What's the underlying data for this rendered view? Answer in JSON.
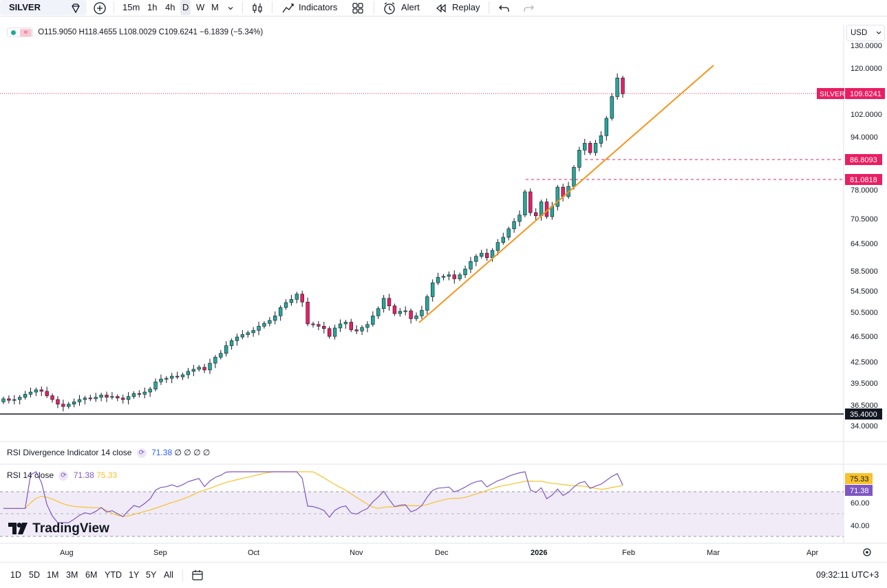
{
  "toolbar": {
    "symbol": "SILVER",
    "timeframes": [
      "15m",
      "1h",
      "4h",
      "D",
      "W",
      "M"
    ],
    "active_timeframe": "D",
    "indicators_label": "Indicators",
    "alert_label": "Alert",
    "replay_label": "Replay",
    "icons": [
      "diamond-icon",
      "add-symbol-icon",
      "chevron-down-icon",
      "candles-icon",
      "indicators-icon",
      "layout-icon",
      "alert-icon",
      "replay-icon",
      "undo-icon",
      "redo-icon"
    ]
  },
  "legend": {
    "open": "O115.9050",
    "high": "H118.4655",
    "low": "L108.0029",
    "close": "C109.6241",
    "change": "−6.1839 (−5.34%)"
  },
  "currency": "USD",
  "price_axis": {
    "ticks": [
      "130.0000",
      "120.0000",
      "102.0000",
      "94.0000",
      "78.0000",
      "70.5000",
      "64.5000",
      "58.5000",
      "54.5000",
      "50.5000",
      "46.5000",
      "42.5000",
      "39.5000",
      "36.5000",
      "34.0000"
    ],
    "last_price_symbol": "SILVER",
    "last_price": "109.6241",
    "level_1": "86.8093",
    "level_2": "81.0818",
    "level_3": "35.4000"
  },
  "indicators": {
    "divergence": {
      "label": "RSI Divergence Indicator 14 close",
      "value": "71.38",
      "extra": "∅ ∅ ∅ ∅"
    },
    "rsi": {
      "label": "RSI 14 close",
      "rsi_value": "71.38",
      "ma_value": "75.33"
    },
    "rsi_axis": [
      "60.00",
      "40.00"
    ]
  },
  "time_axis": [
    "Aug",
    "Sep",
    "Oct",
    "Nov",
    "Dec",
    "2026",
    "Feb",
    "Mar",
    "Apr"
  ],
  "brand": "TradingView",
  "bottombar": {
    "ranges": [
      "1D",
      "5D",
      "1M",
      "3M",
      "6M",
      "YTD",
      "1Y",
      "5Y",
      "All"
    ],
    "clock": "09:32:11 UTC+3"
  },
  "colors": {
    "up": "#26a69a",
    "down": "#e91e63",
    "trend": "#f7931a",
    "rsi": "#7e57c2",
    "rsi_ma": "#f7c22b"
  },
  "chart_data": {
    "type": "candlestick",
    "series_points": [
      [
        36.9,
        37.3
      ],
      [
        37.3,
        37.1
      ],
      [
        37.1,
        37.2
      ],
      [
        37.2,
        37.5
      ],
      [
        37.5,
        37.9
      ],
      [
        37.9,
        38.2
      ],
      [
        38.2,
        38.5
      ],
      [
        38.5,
        38.3
      ],
      [
        38.3,
        37.7
      ],
      [
        37.7,
        37.2
      ],
      [
        37.2,
        36.6
      ],
      [
        36.6,
        36.3
      ],
      [
        36.3,
        36.6
      ],
      [
        36.6,
        36.9
      ],
      [
        36.9,
        37.2
      ],
      [
        37.2,
        37.4
      ],
      [
        37.4,
        37.3
      ],
      [
        37.3,
        37.5
      ],
      [
        37.5,
        37.8
      ],
      [
        37.8,
        37.5
      ],
      [
        37.5,
        37.6
      ],
      [
        37.6,
        37.4
      ],
      [
        37.4,
        37.2
      ],
      [
        37.2,
        37.6
      ],
      [
        37.6,
        38.0
      ],
      [
        38.0,
        37.9
      ],
      [
        37.9,
        38.2
      ],
      [
        38.2,
        38.6
      ],
      [
        38.6,
        39.6
      ],
      [
        39.6,
        40.0
      ],
      [
        40.0,
        40.1
      ],
      [
        40.1,
        40.4
      ],
      [
        40.4,
        40.3
      ],
      [
        40.3,
        40.6
      ],
      [
        40.6,
        41.1
      ],
      [
        41.1,
        41.4
      ],
      [
        41.4,
        41.7
      ],
      [
        41.7,
        41.3
      ],
      [
        41.3,
        42.3
      ],
      [
        42.3,
        43.2
      ],
      [
        43.2,
        43.8
      ],
      [
        43.8,
        45.0
      ],
      [
        45.0,
        45.8
      ],
      [
        45.8,
        46.4
      ],
      [
        46.4,
        46.8
      ],
      [
        46.8,
        47.1
      ],
      [
        47.1,
        47.5
      ],
      [
        47.5,
        48.2
      ],
      [
        48.2,
        48.7
      ],
      [
        48.7,
        49.2
      ],
      [
        49.2,
        50.0
      ],
      [
        50.0,
        51.5
      ],
      [
        51.5,
        52.4
      ],
      [
        52.4,
        53.0
      ],
      [
        53.0,
        54.0
      ],
      [
        54.0,
        52.5
      ],
      [
        52.5,
        48.6
      ],
      [
        48.6,
        48.5
      ],
      [
        48.5,
        48.2
      ],
      [
        48.2,
        47.8
      ],
      [
        47.8,
        46.5
      ],
      [
        46.5,
        47.9
      ],
      [
        47.9,
        48.6
      ],
      [
        48.6,
        48.9
      ],
      [
        48.9,
        47.6
      ],
      [
        47.6,
        47.4
      ],
      [
        47.4,
        48.0
      ],
      [
        48.0,
        48.5
      ],
      [
        48.5,
        50.0
      ],
      [
        50.0,
        51.3
      ],
      [
        51.3,
        53.2
      ],
      [
        53.2,
        51.8
      ],
      [
        51.8,
        50.4
      ],
      [
        50.4,
        50.8
      ],
      [
        50.8,
        50.9
      ],
      [
        50.9,
        49.5
      ],
      [
        49.5,
        50.0
      ],
      [
        50.0,
        51.0
      ],
      [
        51.0,
        53.5
      ],
      [
        53.5,
        56.2
      ],
      [
        56.2,
        57.3
      ],
      [
        57.3,
        57.5
      ],
      [
        57.5,
        57.8
      ],
      [
        57.8,
        57.0
      ],
      [
        57.0,
        57.8
      ],
      [
        57.8,
        59.0
      ],
      [
        59.0,
        60.6
      ],
      [
        60.6,
        61.7
      ],
      [
        61.7,
        62.4
      ],
      [
        62.4,
        61.4
      ],
      [
        61.4,
        63.0
      ],
      [
        63.0,
        64.8
      ],
      [
        64.8,
        66.0
      ],
      [
        66.0,
        68.0
      ],
      [
        68.0,
        69.8
      ],
      [
        69.8,
        71.4
      ],
      [
        71.4,
        77.5
      ],
      [
        77.5,
        72.0
      ],
      [
        72.0,
        71.2
      ],
      [
        71.2,
        74.8
      ],
      [
        74.8,
        71.0
      ],
      [
        71.0,
        73.6
      ],
      [
        73.6,
        78.8
      ],
      [
        78.8,
        76.2
      ],
      [
        76.2,
        79.0
      ],
      [
        79.0,
        84.5
      ],
      [
        84.5,
        89.8
      ],
      [
        89.8,
        92.0
      ],
      [
        92.0,
        89.0
      ],
      [
        89.0,
        92.0
      ],
      [
        92.0,
        94.5
      ],
      [
        94.5,
        100.5
      ],
      [
        100.5,
        108.5
      ],
      [
        108.5,
        115.9
      ],
      [
        115.9,
        109.6
      ]
    ]
  }
}
